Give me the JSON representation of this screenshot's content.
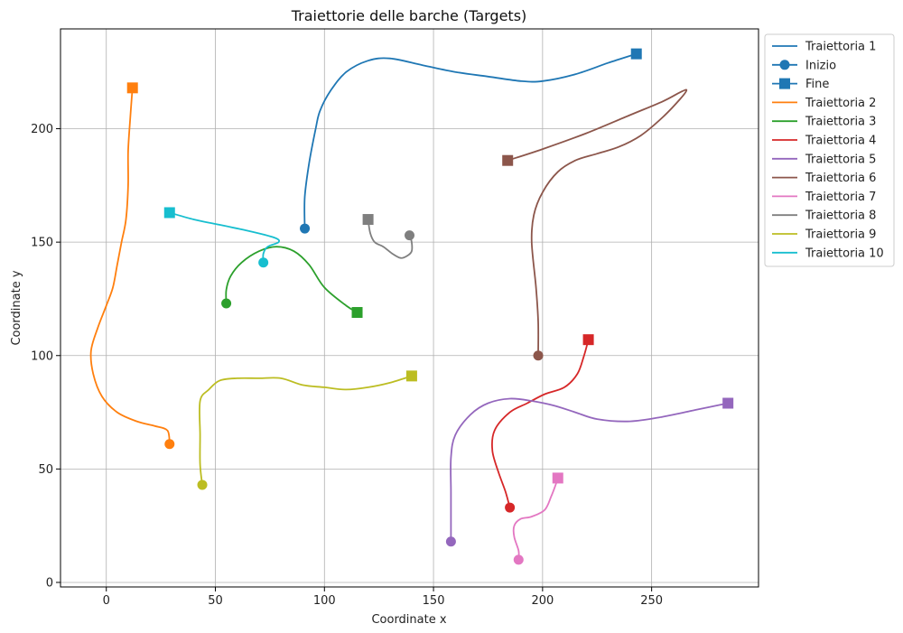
{
  "chart_data": {
    "type": "line",
    "title": "Traiettorie delle barche (Targets)",
    "xlabel": "Coordinate x",
    "ylabel": "Coordinate y",
    "xlim": [
      -21,
      299
    ],
    "ylim": [
      -2,
      244
    ],
    "xticks": [
      0,
      50,
      100,
      150,
      200,
      250
    ],
    "yticks": [
      0,
      50,
      100,
      150,
      200
    ],
    "grid": true,
    "legend_position": "outside-top-right",
    "legend_markers": [
      {
        "label": "Inizio",
        "marker": "circle",
        "color": "#1f77b4"
      },
      {
        "label": "Fine",
        "marker": "square",
        "color": "#1f77b4"
      }
    ],
    "series": [
      {
        "name": "Traiettoria 1",
        "color": "#1f77b4",
        "points": [
          [
            91,
            156
          ],
          [
            91,
            170
          ],
          [
            93,
            185
          ],
          [
            96,
            200
          ],
          [
            98,
            208
          ],
          [
            103,
            217
          ],
          [
            110,
            225
          ],
          [
            120,
            230
          ],
          [
            130,
            231
          ],
          [
            145,
            228
          ],
          [
            160,
            225
          ],
          [
            175,
            223
          ],
          [
            190,
            221
          ],
          [
            200,
            221
          ],
          [
            215,
            224
          ],
          [
            230,
            229
          ],
          [
            243,
            233
          ]
        ]
      },
      {
        "name": "Traiettoria 2",
        "color": "#ff7f0e",
        "points": [
          [
            29,
            61
          ],
          [
            28,
            67
          ],
          [
            22,
            69
          ],
          [
            14,
            71
          ],
          [
            5,
            75
          ],
          [
            -2,
            82
          ],
          [
            -6,
            92
          ],
          [
            -7,
            102
          ],
          [
            -4,
            112
          ],
          [
            0,
            122
          ],
          [
            3,
            130
          ],
          [
            5,
            140
          ],
          [
            7,
            150
          ],
          [
            9,
            160
          ],
          [
            10,
            175
          ],
          [
            10,
            190
          ],
          [
            11,
            205
          ],
          [
            12,
            218
          ]
        ]
      },
      {
        "name": "Traiettoria 3",
        "color": "#2ca02c",
        "points": [
          [
            55,
            123
          ],
          [
            55,
            129
          ],
          [
            57,
            135
          ],
          [
            62,
            141
          ],
          [
            70,
            146
          ],
          [
            78,
            148
          ],
          [
            86,
            146
          ],
          [
            93,
            140
          ],
          [
            100,
            130
          ],
          [
            110,
            122
          ],
          [
            115,
            119
          ]
        ]
      },
      {
        "name": "Traiettoria 4",
        "color": "#d62728",
        "points": [
          [
            185,
            33
          ],
          [
            183,
            40
          ],
          [
            180,
            48
          ],
          [
            177,
            58
          ],
          [
            178,
            67
          ],
          [
            185,
            75
          ],
          [
            193,
            79
          ],
          [
            201,
            83
          ],
          [
            210,
            86
          ],
          [
            216,
            92
          ],
          [
            219,
            100
          ],
          [
            221,
            107
          ]
        ]
      },
      {
        "name": "Traiettoria 5",
        "color": "#9467bd",
        "points": [
          [
            158,
            18
          ],
          [
            158,
            25
          ],
          [
            158,
            40
          ],
          [
            158,
            55
          ],
          [
            160,
            65
          ],
          [
            167,
            74
          ],
          [
            175,
            79
          ],
          [
            185,
            81
          ],
          [
            195,
            80
          ],
          [
            205,
            78
          ],
          [
            215,
            75
          ],
          [
            225,
            72
          ],
          [
            240,
            71
          ],
          [
            255,
            73
          ],
          [
            270,
            76
          ],
          [
            285,
            79
          ]
        ]
      },
      {
        "name": "Traiettoria 6",
        "color": "#8c564b",
        "points": [
          [
            198,
            100
          ],
          [
            198,
            115
          ],
          [
            197,
            130
          ],
          [
            195,
            150
          ],
          [
            196,
            162
          ],
          [
            200,
            172
          ],
          [
            207,
            181
          ],
          [
            215,
            186
          ],
          [
            225,
            189
          ],
          [
            235,
            192
          ],
          [
            245,
            197
          ],
          [
            255,
            205
          ],
          [
            263,
            213
          ],
          [
            266,
            217
          ],
          [
            263,
            216
          ],
          [
            255,
            212
          ],
          [
            240,
            206
          ],
          [
            220,
            198
          ],
          [
            200,
            191
          ],
          [
            184,
            186
          ]
        ]
      },
      {
        "name": "Traiettoria 7",
        "color": "#e377c2",
        "points": [
          [
            189,
            10
          ],
          [
            189,
            14
          ],
          [
            187,
            20
          ],
          [
            187,
            25
          ],
          [
            190,
            28
          ],
          [
            195,
            29
          ],
          [
            201,
            32
          ],
          [
            204,
            38
          ],
          [
            206,
            43
          ],
          [
            207,
            46
          ]
        ]
      },
      {
        "name": "Traiettoria 8",
        "color": "#7f7f7f",
        "points": [
          [
            139,
            153
          ],
          [
            140,
            150
          ],
          [
            140,
            146
          ],
          [
            138,
            144
          ],
          [
            135,
            143
          ],
          [
            131,
            145
          ],
          [
            127,
            148
          ],
          [
            123,
            150
          ],
          [
            121,
            154
          ],
          [
            120,
            160
          ]
        ]
      },
      {
        "name": "Traiettoria 9",
        "color": "#bcbd22",
        "points": [
          [
            44,
            43
          ],
          [
            43,
            52
          ],
          [
            43,
            65
          ],
          [
            43,
            80
          ],
          [
            47,
            85
          ],
          [
            52,
            89
          ],
          [
            60,
            90
          ],
          [
            70,
            90
          ],
          [
            80,
            90
          ],
          [
            90,
            87
          ],
          [
            100,
            86
          ],
          [
            110,
            85
          ],
          [
            120,
            86
          ],
          [
            130,
            88
          ],
          [
            140,
            91
          ]
        ]
      },
      {
        "name": "Traiettoria 10",
        "color": "#17becf",
        "points": [
          [
            72,
            141
          ],
          [
            72,
            145
          ],
          [
            74,
            148
          ],
          [
            79,
            150
          ],
          [
            77,
            152
          ],
          [
            65,
            155
          ],
          [
            50,
            158
          ],
          [
            40,
            160
          ],
          [
            29,
            163
          ]
        ]
      }
    ]
  }
}
